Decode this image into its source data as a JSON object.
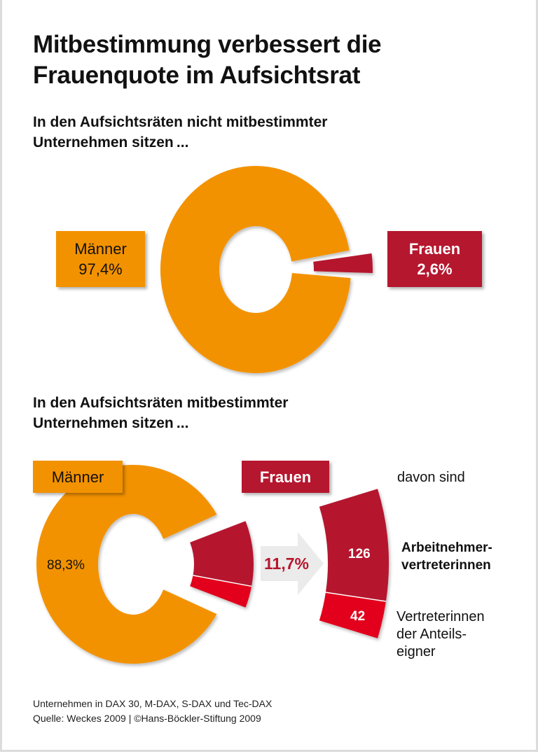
{
  "title_line1": "Mitbestimmung verbessert die",
  "title_line2": "Frauenquote im Aufsichtsrat",
  "colors": {
    "men": "#f39200",
    "women": "#b5172e",
    "shareholder_reps": "#e2001a",
    "arrow": "#ebebeb"
  },
  "chart_data": [
    {
      "type": "pie",
      "subtitle_line1": "In den Aufsichtsräten nicht mitbestimmter",
      "subtitle_line2": "Unternehmen sitzen ...",
      "slices": [
        {
          "name": "Männer",
          "value": 97.4,
          "label": "97,4%"
        },
        {
          "name": "Frauen",
          "value": 2.6,
          "label": "2,6%"
        }
      ]
    },
    {
      "type": "pie",
      "subtitle_line1": "In den Aufsichtsräten mitbestimmter",
      "subtitle_line2": "Unternehmen sitzen ...",
      "slices": [
        {
          "name": "Männer",
          "value": 88.3,
          "label": "88,3%"
        },
        {
          "name": "Frauen",
          "value": 11.7,
          "label": "11,7%"
        }
      ],
      "breakdown": {
        "heading": "davon sind",
        "parts": [
          {
            "name_line1": "Arbeitnehmer-",
            "name_line2": "vertreterinnen",
            "value": 126,
            "label": "126"
          },
          {
            "name_line1": "Vertreterinnen",
            "name_line2": "der Anteils-",
            "name_line3": "eigner",
            "value": 42,
            "label": "42"
          }
        ]
      }
    }
  ],
  "footer": {
    "line1": "Unternehmen in DAX 30, M-DAX, S-DAX und Tec-DAX",
    "line2": "Quelle: Weckes 2009 | ©Hans-Böckler-Stiftung 2009"
  }
}
